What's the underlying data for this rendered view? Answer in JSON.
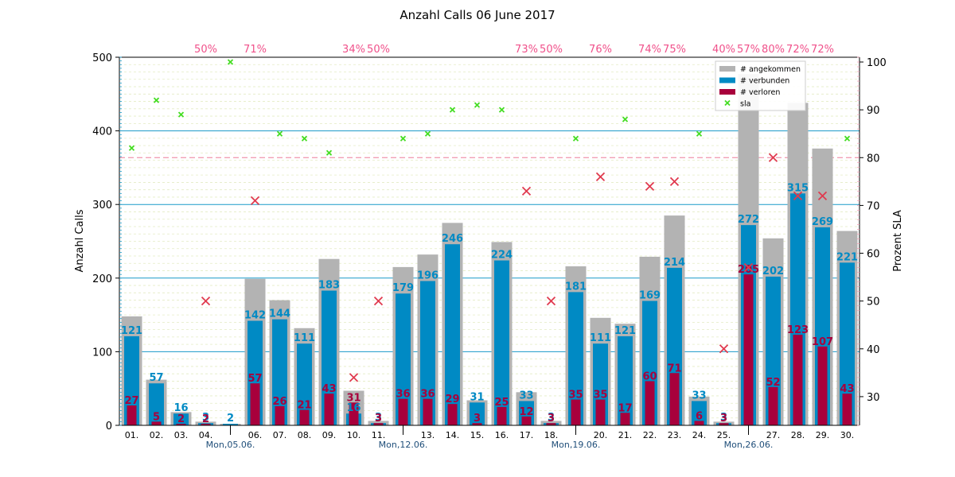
{
  "chart_data": {
    "type": "bar",
    "title": "Anzahl Calls 06 June 2017",
    "ylabel": "Anzahl Calls",
    "y2label": "Prozent SLA",
    "ylim": [
      0,
      500
    ],
    "y2lim": [
      24,
      101
    ],
    "yticks": [
      0,
      100,
      200,
      300,
      400,
      500
    ],
    "y2ticks": [
      30,
      40,
      50,
      60,
      70,
      80,
      90,
      100
    ],
    "sla_target": 80,
    "categories": [
      "01.",
      "02.",
      "03.",
      "04.",
      "",
      "06.",
      "07.",
      "08.",
      "09.",
      "10.",
      "11.",
      "",
      "13.",
      "14.",
      "15.",
      "16.",
      "17.",
      "18.",
      "",
      "20.",
      "21.",
      "22.",
      "23.",
      "24.",
      "25.",
      "",
      "27.",
      "28.",
      "29.",
      "30."
    ],
    "week_labels": [
      {
        "index": 4,
        "label": "Mon,05.06."
      },
      {
        "index": 11,
        "label": "Mon,12.06."
      },
      {
        "index": 18,
        "label": "Mon,19.06."
      },
      {
        "index": 25,
        "label": "Mon,26.06."
      }
    ],
    "legend_position": "top-right",
    "series": [
      {
        "name": "# angekommen",
        "color": "#b3b3b3",
        "values": [
          148,
          62,
          18,
          5,
          2,
          199,
          170,
          132,
          226,
          47,
          6,
          215,
          232,
          275,
          34,
          249,
          45,
          6,
          216,
          146,
          138,
          229,
          285,
          39,
          5,
          477,
          254,
          438,
          376,
          264
        ]
      },
      {
        "name": "# verbunden",
        "color": "#008ac4",
        "values": [
          121,
          57,
          16,
          3,
          2,
          142,
          144,
          111,
          183,
          16,
          3,
          179,
          196,
          246,
          31,
          224,
          33,
          3,
          181,
          111,
          121,
          169,
          214,
          33,
          3,
          272,
          202,
          315,
          269,
          221
        ]
      },
      {
        "name": "# verloren",
        "color": "#a8003c",
        "values": [
          27,
          5,
          2,
          2,
          0,
          57,
          26,
          21,
          43,
          31,
          3,
          36,
          36,
          29,
          3,
          25,
          12,
          3,
          35,
          35,
          17,
          60,
          71,
          6,
          3,
          205,
          52,
          123,
          107,
          43
        ]
      },
      {
        "name": "sla",
        "color": "#44dd22",
        "values": [
          82,
          92,
          89,
          null,
          100,
          null,
          85,
          84,
          81,
          null,
          null,
          84,
          85,
          90,
          91,
          90,
          null,
          null,
          84,
          null,
          88,
          null,
          null,
          85,
          null,
          null,
          null,
          null,
          null,
          84
        ]
      }
    ],
    "sla_below_target": [
      null,
      null,
      null,
      50,
      null,
      71,
      null,
      null,
      null,
      34,
      50,
      null,
      null,
      null,
      null,
      null,
      73,
      50,
      null,
      76,
      null,
      74,
      75,
      null,
      40,
      57,
      80,
      72,
      72,
      null
    ],
    "sla_below_labels": [
      "",
      "",
      "",
      "50%",
      "",
      "71%",
      "",
      "",
      "",
      "34%",
      "50%",
      "",
      "",
      "",
      "",
      "",
      "73%",
      "50%",
      "",
      "76%",
      "",
      "74%",
      "75%",
      "",
      "40%",
      "57%",
      "80%",
      "72%",
      "72%",
      ""
    ]
  }
}
